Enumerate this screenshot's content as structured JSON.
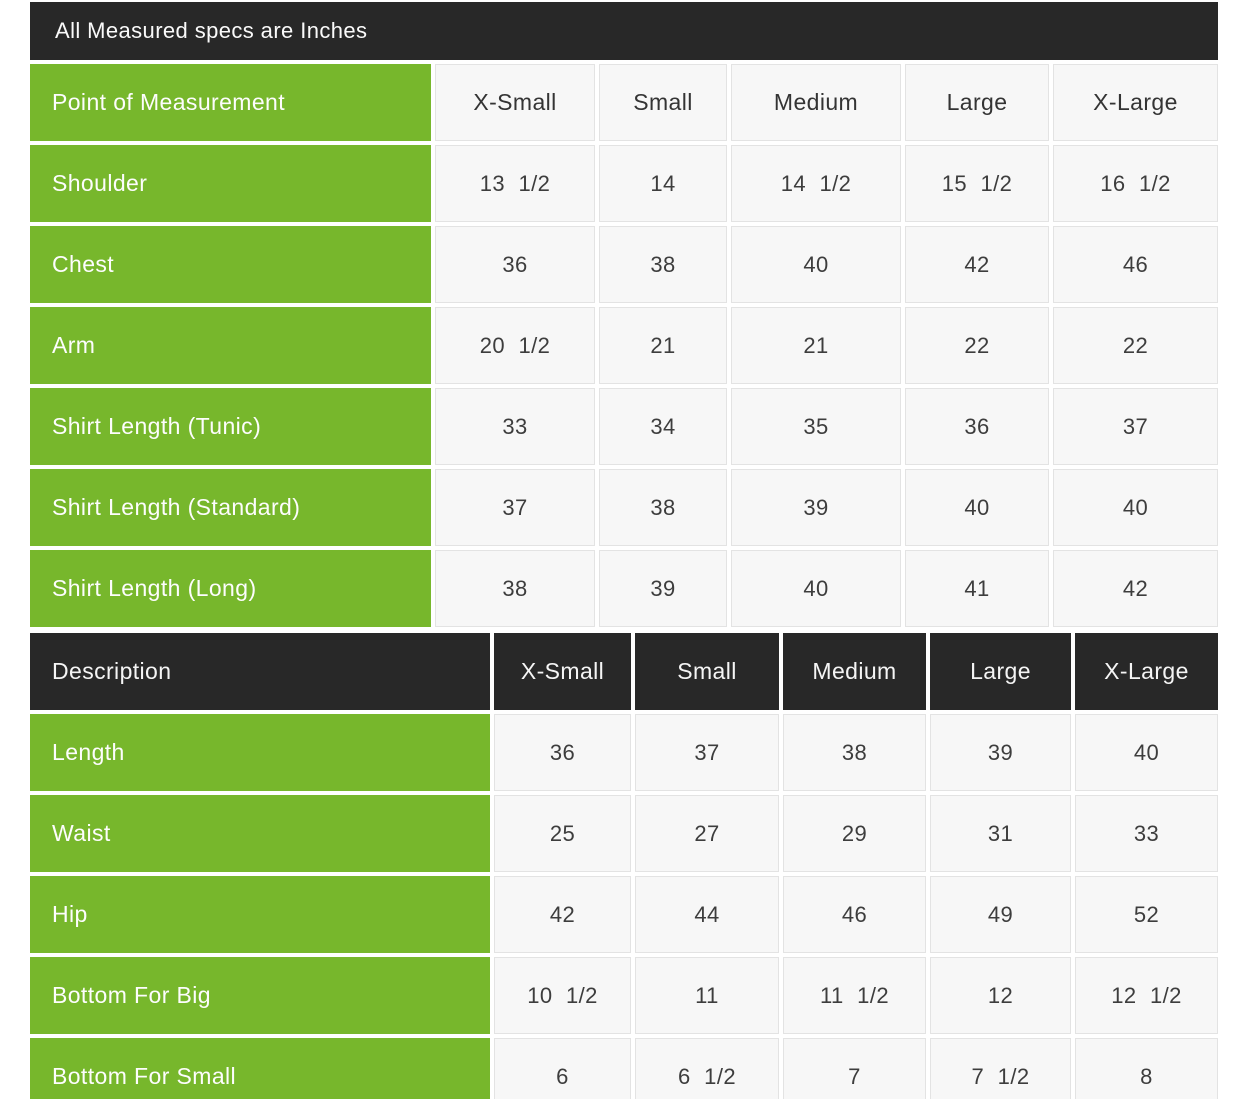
{
  "colors": {
    "accent_green": "#77b72c",
    "header_dark": "#282828",
    "cell_background": "#f7f7f7",
    "cell_border": "#e3e3e3",
    "cell_text": "#3d3d3d",
    "inverse_text": "#ffffff",
    "page_background": "#ffffff"
  },
  "banner": {
    "text": "All Measured specs are Inches"
  },
  "table1": {
    "header": "Point of Measurement",
    "columns": [
      "X-Small",
      "Small",
      "Medium",
      "Large",
      "X-Large"
    ],
    "rows": [
      {
        "label": "Shoulder",
        "values": [
          "13 1/2",
          "14",
          "14 1/2",
          "15 1/2",
          "16 1/2"
        ]
      },
      {
        "label": "Chest",
        "values": [
          "36",
          "38",
          "40",
          "42",
          "46"
        ]
      },
      {
        "label": "Arm",
        "values": [
          "20 1/2",
          "21",
          "21",
          "22",
          "22"
        ]
      },
      {
        "label": "Shirt Length (Tunic)",
        "values": [
          "33",
          "34",
          "35",
          "36",
          "37"
        ]
      },
      {
        "label": "Shirt Length (Standard)",
        "values": [
          "37",
          "38",
          "39",
          "40",
          "40"
        ]
      },
      {
        "label": "Shirt Length (Long)",
        "values": [
          "38",
          "39",
          "40",
          "41",
          "42"
        ]
      }
    ]
  },
  "table2": {
    "header": "Description",
    "columns": [
      "X-Small",
      "Small",
      "Medium",
      "Large",
      "X-Large"
    ],
    "rows": [
      {
        "label": "Length",
        "values": [
          "36",
          "37",
          "38",
          "39",
          "40"
        ]
      },
      {
        "label": "Waist",
        "values": [
          "25",
          "27",
          "29",
          "31",
          "33"
        ]
      },
      {
        "label": "Hip",
        "values": [
          "42",
          "44",
          "46",
          "49",
          "52"
        ]
      },
      {
        "label": "Bottom For Big",
        "values": [
          "10 1/2",
          "11",
          "11 1/2",
          "12",
          "12 1/2"
        ]
      },
      {
        "label": "Bottom For Small",
        "values": [
          "6",
          "6 1/2",
          "7",
          "7 1/2",
          "8"
        ]
      }
    ]
  }
}
